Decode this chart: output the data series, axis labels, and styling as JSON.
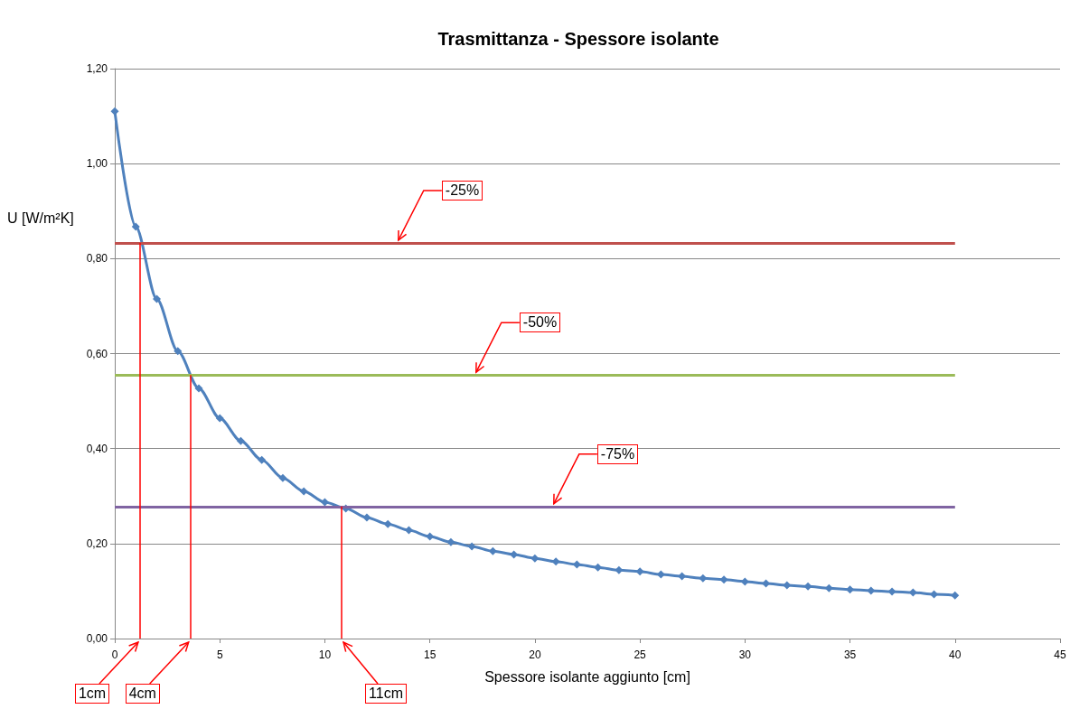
{
  "chart_data": {
    "type": "line",
    "title": "Trasmittanza - Spessore isolante",
    "xlabel": "Spessore isolante aggiunto [cm]",
    "ylabel": "U [W/m²K]",
    "x": [
      0,
      1,
      2,
      3,
      4,
      5,
      6,
      7,
      8,
      9,
      10,
      11,
      12,
      13,
      14,
      15,
      16,
      17,
      18,
      19,
      20,
      21,
      22,
      23,
      24,
      25,
      26,
      27,
      28,
      29,
      30,
      31,
      32,
      33,
      34,
      35,
      36,
      37,
      38,
      39,
      40
    ],
    "series": [
      {
        "color": "#4f81bd",
        "values": [
          1.11,
          0.867,
          0.715,
          0.605,
          0.527,
          0.464,
          0.416,
          0.376,
          0.338,
          0.31,
          0.287,
          0.274,
          0.255,
          0.241,
          0.228,
          0.215,
          0.203,
          0.194,
          0.184,
          0.177,
          0.169,
          0.162,
          0.156,
          0.15,
          0.144,
          0.141,
          0.135,
          0.131,
          0.127,
          0.124,
          0.12,
          0.116,
          0.112,
          0.11,
          0.106,
          0.103,
          0.101,
          0.099,
          0.097,
          0.093,
          0.091
        ]
      }
    ],
    "xlim": [
      0,
      45
    ],
    "xticks": [
      0,
      5,
      10,
      15,
      20,
      25,
      30,
      35,
      40,
      45
    ],
    "ylim": [
      0,
      1.2
    ],
    "yticks": [
      {
        "value": 0,
        "label": "0,00"
      },
      {
        "value": 0.2,
        "label": "0,20"
      },
      {
        "value": 0.4,
        "label": "0,40"
      },
      {
        "value": 0.6,
        "label": "0,60"
      },
      {
        "value": 0.8,
        "label": "0,80"
      },
      {
        "value": 1.0,
        "label": "1,00"
      },
      {
        "value": 1.2,
        "label": "1,20"
      }
    ],
    "grid": "y",
    "marker": "diamond",
    "line_style": "solid",
    "ref_lines": [
      {
        "axis": "y",
        "value": 0.833,
        "color": "#c0504d"
      },
      {
        "axis": "y",
        "value": 0.555,
        "color": "#9bbb59"
      },
      {
        "axis": "y",
        "value": 0.278,
        "color": "#8064a2"
      },
      {
        "axis": "x",
        "value": 1.2,
        "color": "#ff0000"
      },
      {
        "axis": "x",
        "value": 3.6,
        "color": "#ff0000"
      },
      {
        "axis": "x",
        "value": 10.8,
        "color": "#ff0000"
      }
    ],
    "annotations": [
      {
        "text": "-25%",
        "x": 13.5,
        "y": 0.833
      },
      {
        "text": "-50%",
        "x": 17.2,
        "y": 0.555
      },
      {
        "text": "-75%",
        "x": 20.9,
        "y": 0.278
      },
      {
        "text": "1cm",
        "x": 1.2,
        "y": 0
      },
      {
        "text": "4cm",
        "x": 3.6,
        "y": 0
      },
      {
        "text": "11cm",
        "x": 10.8,
        "y": 0
      }
    ]
  }
}
